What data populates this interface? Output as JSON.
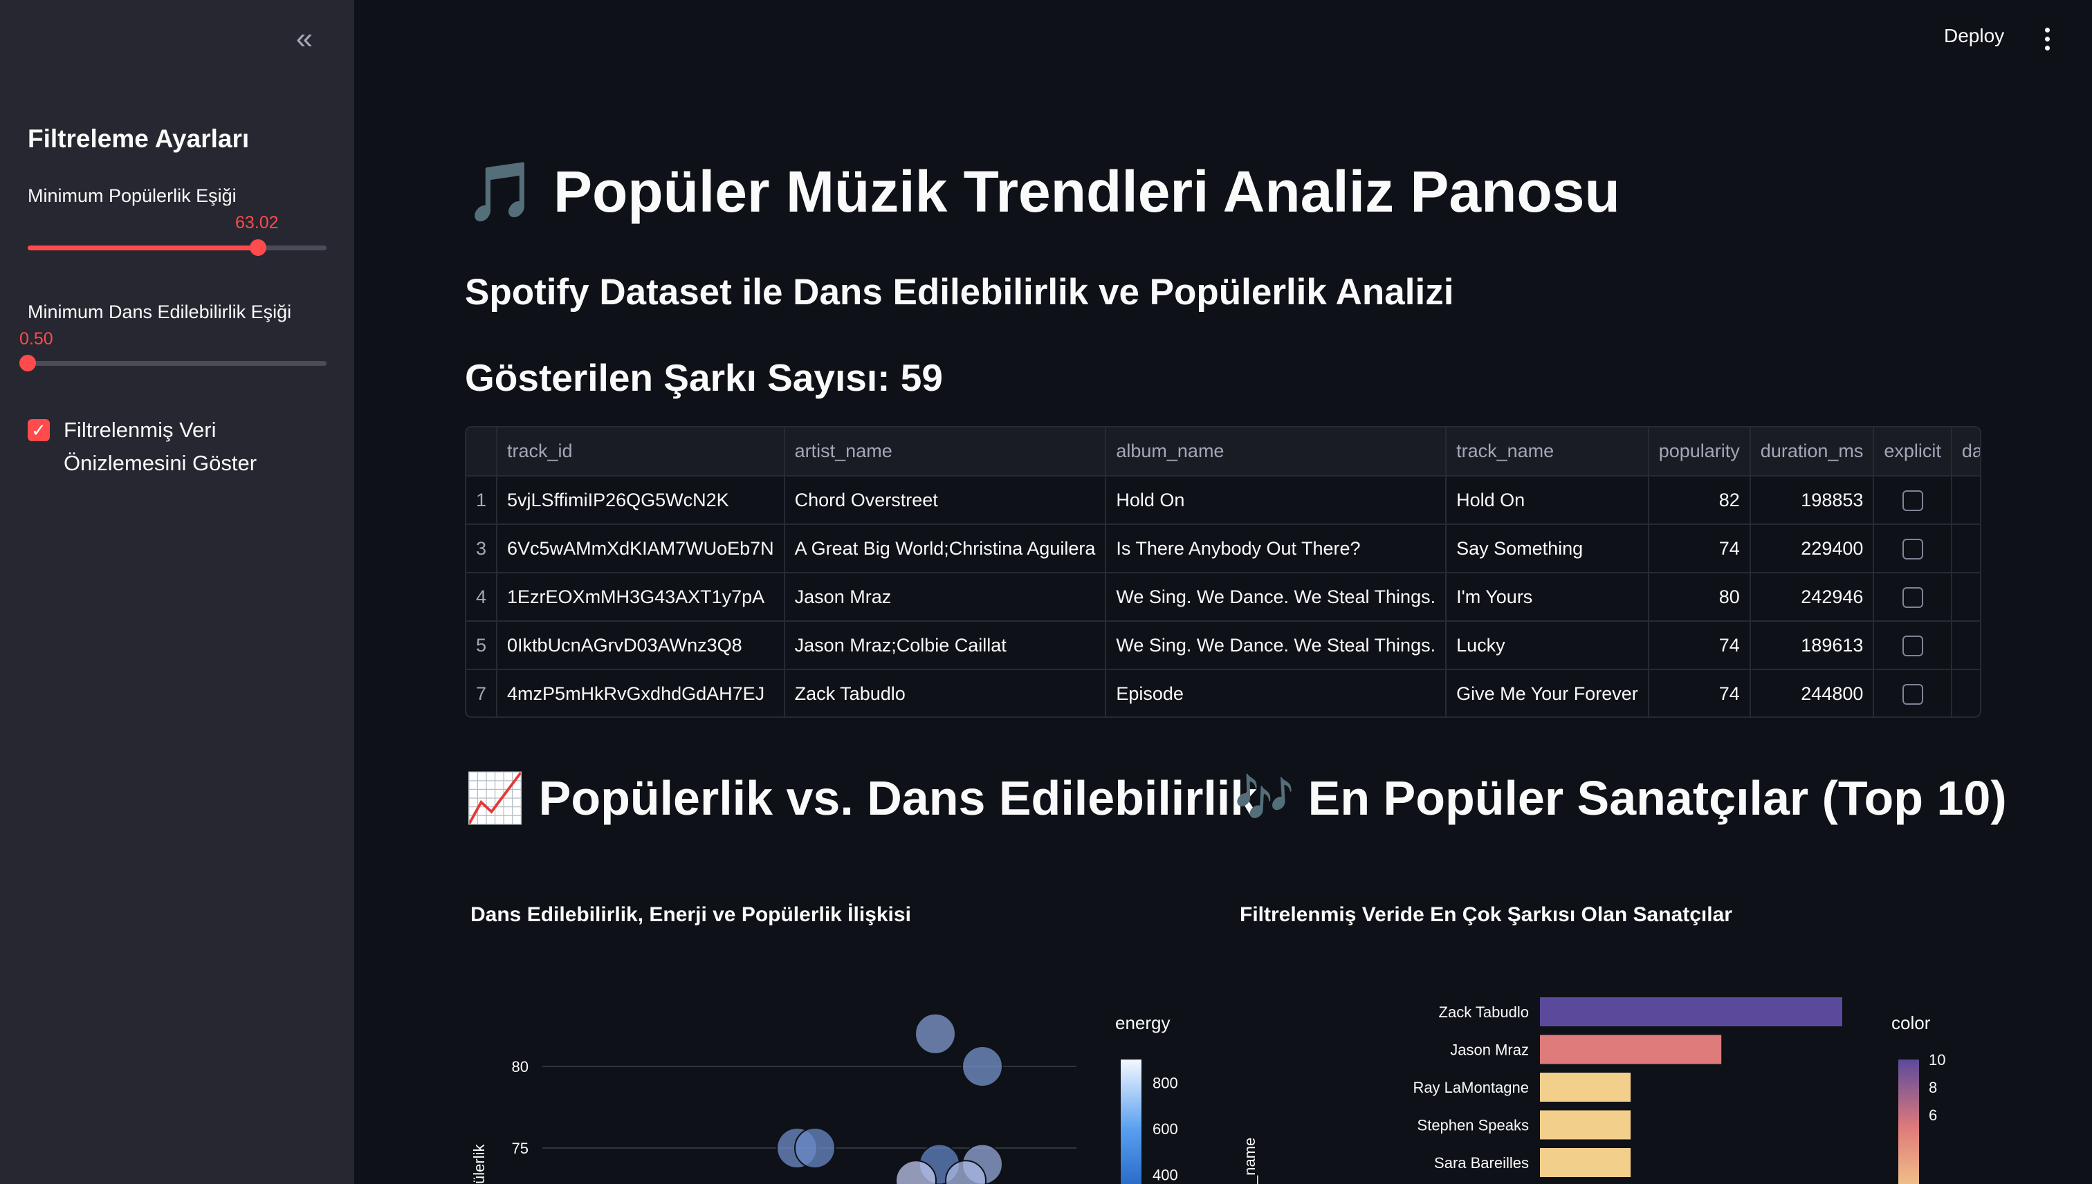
{
  "header": {
    "deploy_label": "Deploy"
  },
  "sidebar": {
    "title": "Filtreleme Ayarları",
    "popularity_slider": {
      "label": "Minimum Popülerlik Eşiği",
      "value": "63.02",
      "fraction": 0.77
    },
    "dance_slider": {
      "label": "Minimum Dans Edilebilirlik Eşiği",
      "value": "0.50",
      "fraction": 0.0
    },
    "checkbox": {
      "label": "Filtrelenmiş Veri Önizlemesini Göster",
      "checked": true
    }
  },
  "main": {
    "title": "Popüler Müzik Trendleri Analiz Panosu",
    "subtitle": "Spotify Dataset ile Dans Edilebilirlik ve Popülerlik Analizi",
    "count_label": "Gösterilen Şarkı Sayısı: 59"
  },
  "table": {
    "columns": [
      "",
      "track_id",
      "artist_name",
      "album_name",
      "track_name",
      "popularity",
      "duration_ms",
      "explicit",
      "danc"
    ],
    "rows": [
      {
        "idx": "1",
        "track_id": "5vjLSffimiIP26QG5WcN2K",
        "artist_name": "Chord Overstreet",
        "album_name": "Hold On",
        "track_name": "Hold On",
        "popularity": "82",
        "duration_ms": "198853"
      },
      {
        "idx": "3",
        "track_id": "6Vc5wAMmXdKIAM7WUoEb7N",
        "artist_name": "A Great Big World;Christina Aguilera",
        "album_name": "Is There Anybody Out There?",
        "track_name": "Say Something",
        "popularity": "74",
        "duration_ms": "229400"
      },
      {
        "idx": "4",
        "track_id": "1EzrEOXmMH3G43AXT1y7pA",
        "artist_name": "Jason Mraz",
        "album_name": "We Sing. We Dance. We Steal Things.",
        "track_name": "I'm Yours",
        "popularity": "80",
        "duration_ms": "242946"
      },
      {
        "idx": "5",
        "track_id": "0IktbUcnAGrvD03AWnz3Q8",
        "artist_name": "Jason Mraz;Colbie Caillat",
        "album_name": "We Sing. We Dance. We Steal Things.",
        "track_name": "Lucky",
        "popularity": "74",
        "duration_ms": "189613"
      },
      {
        "idx": "7",
        "track_id": "4mzP5mHkRvGxdhdGdAH7EJ",
        "artist_name": "Zack Tabudlo",
        "album_name": "Episode",
        "track_name": "Give Me Your Forever",
        "popularity": "74",
        "duration_ms": "244800"
      }
    ]
  },
  "sections": {
    "scatter_heading": "Popülerlik vs. Dans Edilebilirlik",
    "bar_heading": "En Popüler Sanatçılar (Top 10)",
    "scatter_chart_title": "Dans Edilebilirlik, Enerji ve Popülerlik İlişkisi",
    "bar_chart_title": "Filtrelenmiş Veride En Çok Şarkısı Olan Sanatçılar"
  },
  "icons": {
    "title_icon": "musical-note-icon",
    "scatter_icon": "chart-increasing-icon",
    "bar_icon": "musical-notes-icon"
  },
  "colors": {
    "accent": "#ff4b4b",
    "background": "#0e1117",
    "sidebar": "#262730"
  },
  "chart_data": [
    {
      "type": "scatter",
      "title": "Dans Edilebilirlik, Enerji ve Popülerlik İlişkisi",
      "ylabel": "ülerlik",
      "y_ticks": [
        "75",
        "80"
      ],
      "legend_title": "energy",
      "legend_ticks": [
        "400",
        "600",
        "800"
      ],
      "points": [
        {
          "y": 82,
          "energy": 650
        },
        {
          "y": 80,
          "energy": 620
        },
        {
          "y": 75,
          "energy": 600
        },
        {
          "y": 75,
          "energy": 580
        },
        {
          "y": 74,
          "energy": 560
        },
        {
          "y": 74,
          "energy": 700
        },
        {
          "y": 73,
          "energy": 820
        },
        {
          "y": 73,
          "energy": 760
        }
      ]
    },
    {
      "type": "bar",
      "title": "Filtrelenmiş Veride En Çok Şarkısı Olan Sanatçılar",
      "ylabel": "_name",
      "categories": [
        "Zack Tabudlo",
        "Jason Mraz",
        "Ray LaMontagne",
        "Stephen Speaks",
        "Sara Bareilles"
      ],
      "values": [
        10,
        6,
        3,
        3,
        3
      ],
      "legend_title": "color",
      "legend_ticks": [
        "6",
        "8",
        "10"
      ]
    }
  ]
}
